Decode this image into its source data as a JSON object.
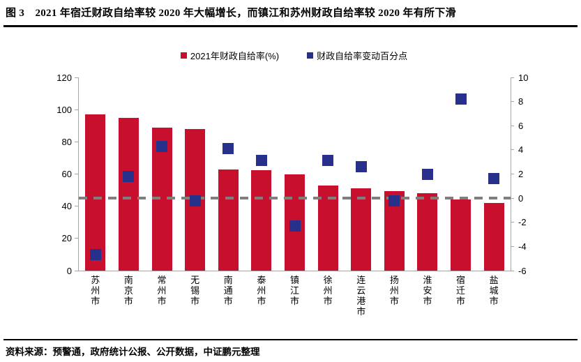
{
  "title": "图 3　2021 年宿迁财政自给率较 2020 年大幅增长，而镇江和苏州财政自给率较 2020 年有所下滑",
  "source_note": "资料来源：预警通，政府统计公报、公开数据，中证鹏元整理",
  "colors": {
    "bar": "#C8102E",
    "marker": "#27318B",
    "dashed_line": "#7F7F7F",
    "axis_line": "#A6A6A6",
    "text": "#000000",
    "rule": "#000000"
  },
  "chart_data": {
    "type": "bar",
    "subtype": "combo-bar-with-square-markers-dual-axis",
    "categories": [
      "苏州市",
      "南京市",
      "常州市",
      "无锡市",
      "南通市",
      "泰州市",
      "镇江市",
      "徐州市",
      "连云港市",
      "扬州市",
      "淮安市",
      "宿迁市",
      "盐城市"
    ],
    "series": [
      {
        "name": "2021年财政自给率(%)",
        "type": "bar",
        "axis": "left",
        "color": "#C8102E",
        "values": [
          97,
          95,
          89,
          88,
          62.8,
          62.5,
          60,
          53,
          51,
          49.5,
          48,
          44,
          42
        ]
      },
      {
        "name": "财政自给率变动百分点",
        "type": "scatter-square",
        "axis": "right",
        "color": "#27318B",
        "values": [
          -4.7,
          1.8,
          4.3,
          -0.2,
          4.1,
          3.1,
          -2.3,
          3.1,
          2.6,
          -0.2,
          2.0,
          8.2,
          1.6
        ]
      }
    ],
    "left_axis": {
      "min": 0,
      "max": 120,
      "step": 20,
      "ticks": [
        0,
        20,
        40,
        60,
        80,
        100,
        120
      ]
    },
    "right_axis": {
      "min": -6,
      "max": 10,
      "step": 2,
      "ticks": [
        -6,
        -4,
        -2,
        0,
        2,
        4,
        6,
        8,
        10
      ]
    },
    "reference_line": {
      "axis": "right",
      "value": 0,
      "style": "dashed",
      "color": "#7F7F7F"
    },
    "grid": false,
    "legend_position": "top-center"
  }
}
